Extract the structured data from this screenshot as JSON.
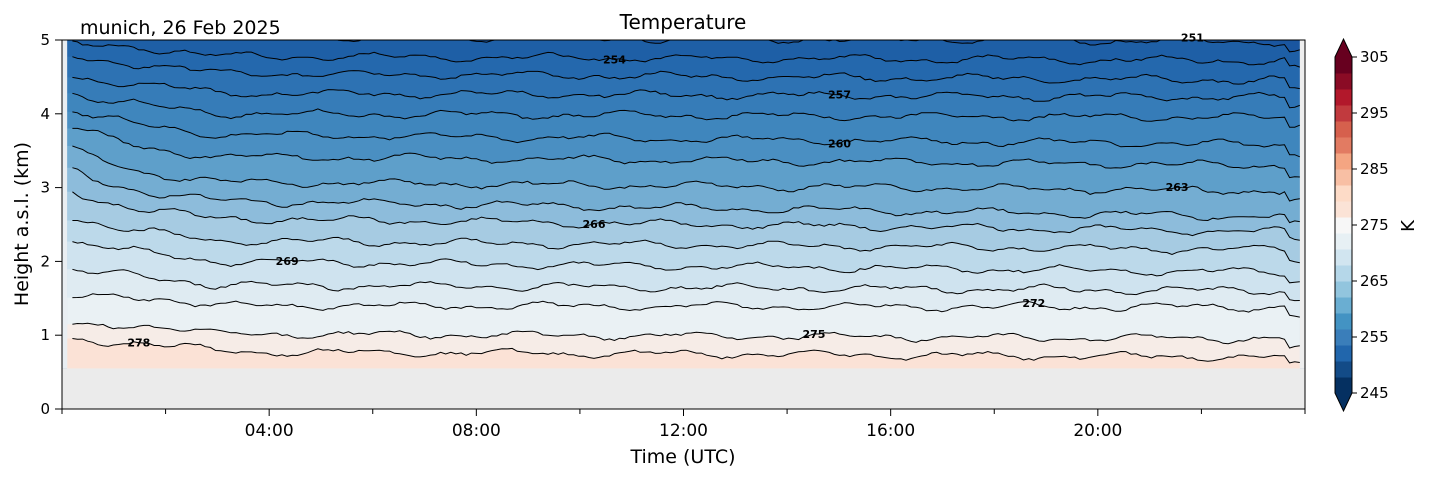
{
  "chart_data": {
    "type": "heatmap",
    "title": "Temperature",
    "location_date": "munich, 26 Feb 2025",
    "xlabel": "Time (UTC)",
    "ylabel": "Height a.s.l. (km)",
    "colorbar_label": "K",
    "xlim_hours": [
      0,
      24
    ],
    "ylim_km": [
      0,
      5
    ],
    "x_ticks": [
      {
        "hour": 4,
        "label": "04:00"
      },
      {
        "hour": 8,
        "label": "08:00"
      },
      {
        "hour": 12,
        "label": "12:00"
      },
      {
        "hour": 16,
        "label": "16:00"
      },
      {
        "hour": 20,
        "label": "20:00"
      }
    ],
    "y_ticks": [
      {
        "km": 0,
        "label": "0"
      },
      {
        "km": 1,
        "label": "1"
      },
      {
        "km": 2,
        "label": "2"
      },
      {
        "km": 3,
        "label": "3"
      },
      {
        "km": 4,
        "label": "4"
      },
      {
        "km": 5,
        "label": "5"
      }
    ],
    "colorbar_range": [
      245,
      305
    ],
    "colorbar_ticks": [
      "245",
      "255",
      "265",
      "275",
      "285",
      "295",
      "305"
    ],
    "colorbar_colors": [
      "#053061",
      "#134b87",
      "#2166ac",
      "#3a7eba",
      "#4393c3",
      "#6aaed2",
      "#92c5de",
      "#b5d7e9",
      "#d1e5f0",
      "#e7f0f4",
      "#f7f7f7",
      "#fbe3d6",
      "#fddbc7",
      "#f8bfa4",
      "#f4a582",
      "#e27b62",
      "#d6604d",
      "#c13a3e",
      "#b2182b",
      "#8a0b25",
      "#67001f"
    ],
    "no_data_below_km": 0.55,
    "no_data_color": "#ebebeb",
    "contour_levels": [
      254,
      257,
      260,
      263,
      266,
      269,
      272,
      275,
      278
    ],
    "contours": [
      {
        "level": 251,
        "start_km": 5.05,
        "trend_km": 5.05,
        "end_km": 4.98,
        "label": "251",
        "label_hour": 21.8
      },
      {
        "level": 254,
        "start_km": 4.95,
        "trend_km": 4.78,
        "end_km": 4.72,
        "label": "254",
        "label_hour": 10.7
      },
      {
        "level": 255.5,
        "start_km": 4.8,
        "trend_km": 4.55,
        "end_km": 4.45,
        "label": "",
        "label_hour": null
      },
      {
        "level": 257,
        "start_km": 4.55,
        "trend_km": 4.28,
        "end_km": 4.22,
        "label": "257",
        "label_hour": 15.0
      },
      {
        "level": 258.5,
        "start_km": 4.35,
        "trend_km": 4.0,
        "end_km": 3.95,
        "label": "",
        "label_hour": null
      },
      {
        "level": 260,
        "start_km": 4.15,
        "trend_km": 3.72,
        "end_km": 3.58,
        "label": "260",
        "label_hour": 15.0
      },
      {
        "level": 261.5,
        "start_km": 3.95,
        "trend_km": 3.42,
        "end_km": 3.3,
        "label": "",
        "label_hour": null
      },
      {
        "level": 263,
        "start_km": 3.65,
        "trend_km": 3.08,
        "end_km": 2.95,
        "label": "263",
        "label_hour": 21.5
      },
      {
        "level": 264.5,
        "start_km": 3.35,
        "trend_km": 2.82,
        "end_km": 2.6,
        "label": "",
        "label_hour": null
      },
      {
        "level": 266,
        "start_km": 3.05,
        "trend_km": 2.58,
        "end_km": 2.4,
        "label": "266",
        "label_hour": 10.3
      },
      {
        "level": 267.5,
        "start_km": 2.7,
        "trend_km": 2.28,
        "end_km": 2.15,
        "label": "",
        "label_hour": null
      },
      {
        "level": 269,
        "start_km": 2.35,
        "trend_km": 2.0,
        "end_km": 1.85,
        "label": "269",
        "label_hour": 4.3
      },
      {
        "level": 270.5,
        "start_km": 1.9,
        "trend_km": 1.68,
        "end_km": 1.6,
        "label": "",
        "label_hour": null
      },
      {
        "level": 272,
        "start_km": 1.5,
        "trend_km": 1.4,
        "end_km": 1.38,
        "label": "272",
        "label_hour": 18.8
      },
      {
        "level": 275,
        "start_km": 1.1,
        "trend_km": 1.02,
        "end_km": 0.95,
        "label": "275",
        "label_hour": 14.5
      },
      {
        "level": 278,
        "start_km": 0.95,
        "trend_km": 0.78,
        "end_km": 0.7,
        "label": "278",
        "label_hour": 1.5
      }
    ]
  }
}
